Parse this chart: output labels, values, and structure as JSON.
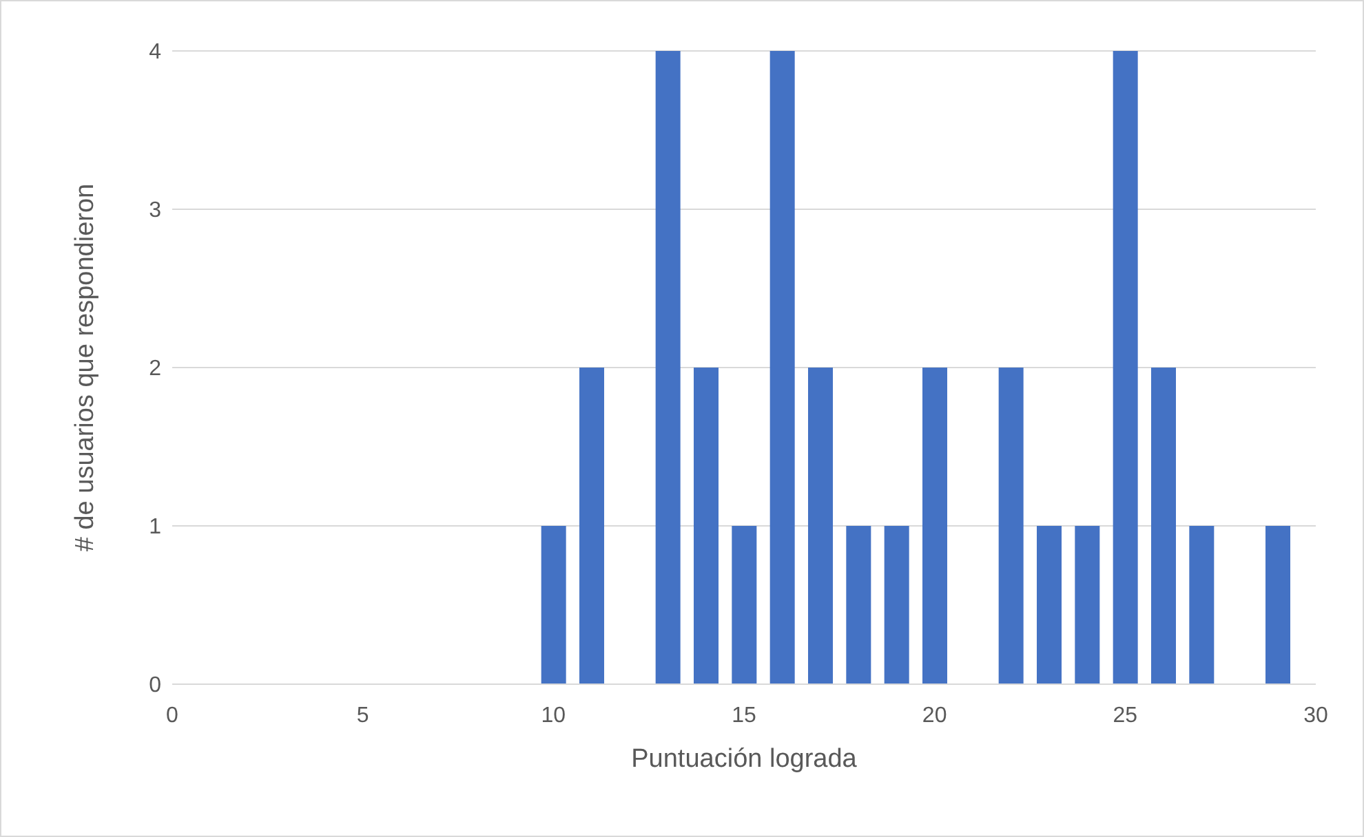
{
  "chart_data": {
    "type": "bar",
    "xlabel": "Puntuación lograda",
    "ylabel": "# de usuarios que respondieron",
    "x": [
      10,
      11,
      13,
      14,
      15,
      16,
      17,
      18,
      19,
      20,
      22,
      23,
      24,
      25,
      26,
      27,
      29
    ],
    "values": [
      1,
      2,
      4,
      2,
      1,
      4,
      2,
      1,
      1,
      2,
      2,
      1,
      1,
      4,
      2,
      1,
      1
    ],
    "color": "#4472c4",
    "xlim": [
      0,
      30
    ],
    "xticks": [
      0,
      5,
      10,
      15,
      20,
      25,
      30
    ],
    "ylim": [
      0,
      4
    ],
    "yticks": [
      0,
      1,
      2,
      3,
      4
    ],
    "grid": "y",
    "legend": false
  }
}
